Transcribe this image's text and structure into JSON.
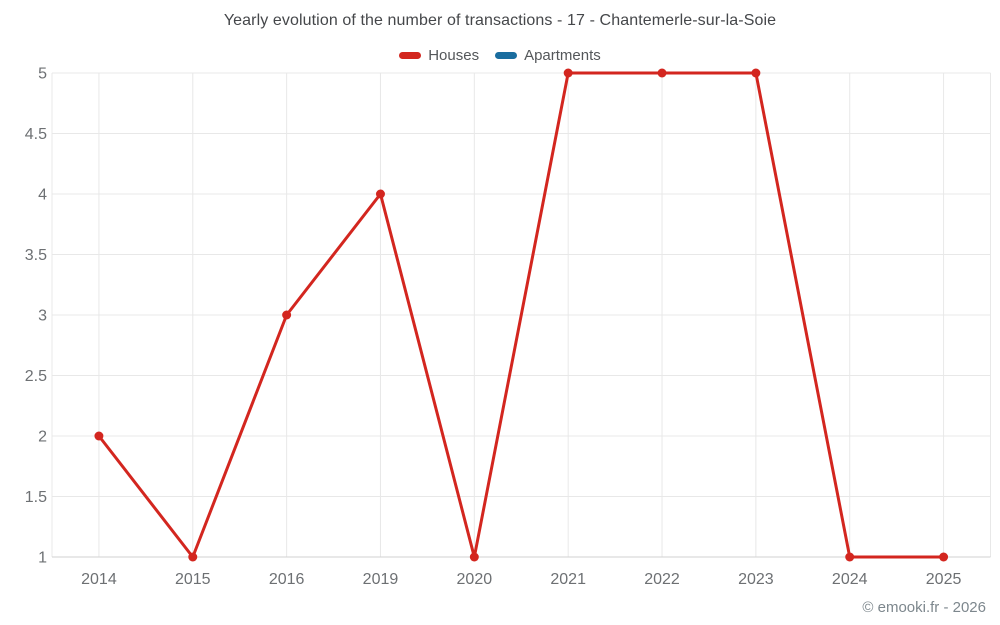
{
  "title": "Yearly evolution of the number of transactions - 17 - Chantemerle-sur-la-Soie",
  "footer": "© emooki.fr - 2026",
  "chart_data": {
    "type": "line",
    "title": "Yearly evolution of the number of transactions - 17 - Chantemerle-sur-la-Soie",
    "categories": [
      "2014",
      "2015",
      "2016",
      "2019",
      "2020",
      "2021",
      "2022",
      "2023",
      "2024",
      "2025"
    ],
    "series": [
      {
        "name": "Houses",
        "color": "#d3261f",
        "values": [
          2,
          1,
          3,
          4,
          1,
          5,
          5,
          5,
          1,
          1
        ]
      },
      {
        "name": "Apartments",
        "color": "#1a6d9f",
        "values": []
      }
    ],
    "xlabel": "",
    "ylabel": "",
    "ylim": [
      1,
      5
    ],
    "ytick_step": 0.5,
    "ytick_labels": [
      "1",
      "1.5",
      "2",
      "2.5",
      "3",
      "3.5",
      "4",
      "4.5",
      "5"
    ],
    "grid": true,
    "legend_position": "top",
    "grid_color": "#e8e8e8",
    "axis_line_color": "#d2d2d2",
    "marker_radius": 4.5,
    "line_width": 3
  }
}
